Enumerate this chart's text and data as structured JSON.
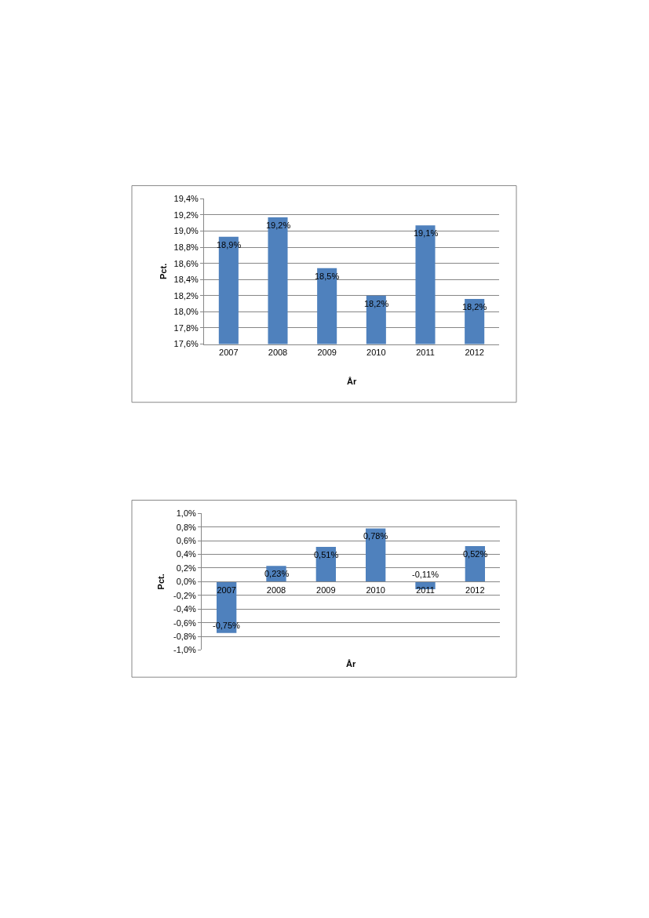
{
  "chart_data": [
    {
      "type": "bar",
      "xlabel": "År",
      "ylabel": "Pct.",
      "categories": [
        "2007",
        "2008",
        "2009",
        "2010",
        "2011",
        "2012"
      ],
      "values": [
        18.93,
        19.17,
        18.54,
        18.2,
        19.07,
        18.16
      ],
      "value_labels": [
        "18,9%",
        "19,2%",
        "18,5%",
        "18,2%",
        "19,1%",
        "18,2%"
      ],
      "color": "#4f81bd",
      "ylim": [
        17.6,
        19.4
      ],
      "yticks": [
        {
          "value": 17.6,
          "label": "17,6%"
        },
        {
          "value": 17.8,
          "label": "17,8%"
        },
        {
          "value": 18.0,
          "label": "18,0%"
        },
        {
          "value": 18.2,
          "label": "18,2%"
        },
        {
          "value": 18.4,
          "label": "18,4%"
        },
        {
          "value": 18.6,
          "label": "18,6%"
        },
        {
          "value": 18.8,
          "label": "18,8%"
        },
        {
          "value": 19.0,
          "label": "19,0%"
        },
        {
          "value": 19.2,
          "label": "19,2%"
        },
        {
          "value": 19.4,
          "label": "19,4%"
        }
      ],
      "grid": "y"
    },
    {
      "type": "bar",
      "xlabel": "År",
      "ylabel": "Pct.",
      "categories": [
        "2007",
        "2008",
        "2009",
        "2010",
        "2011",
        "2012"
      ],
      "values": [
        -0.75,
        0.23,
        0.51,
        0.78,
        -0.11,
        0.52
      ],
      "value_labels": [
        "-0,75%",
        "0,23%",
        "0,51%",
        "0,78%",
        "-0,11%",
        "0,52%"
      ],
      "color": "#4f81bd",
      "ylim": [
        -1.0,
        1.0
      ],
      "yticks": [
        {
          "value": -1.0,
          "label": "-1,0%"
        },
        {
          "value": -0.8,
          "label": "-0,8%"
        },
        {
          "value": -0.6,
          "label": "-0,6%"
        },
        {
          "value": -0.4,
          "label": "-0,4%"
        },
        {
          "value": -0.2,
          "label": "-0,2%"
        },
        {
          "value": 0.0,
          "label": "0,0%"
        },
        {
          "value": 0.2,
          "label": "0,2%"
        },
        {
          "value": 0.4,
          "label": "0,4%"
        },
        {
          "value": 0.6,
          "label": "0,6%"
        },
        {
          "value": 0.8,
          "label": "0,8%"
        },
        {
          "value": 1.0,
          "label": "1,0%"
        }
      ],
      "grid": "y"
    }
  ]
}
